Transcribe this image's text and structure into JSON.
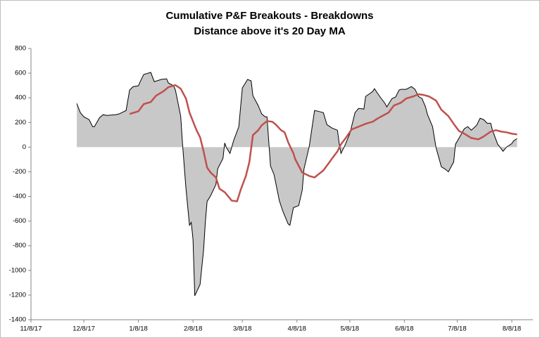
{
  "chart_data": {
    "type": "line",
    "title": "Cumulative P&F Breakouts - Breakdowns",
    "subtitle": "Distance above it's 20 Day MA",
    "xlim": [
      "2017-11-08",
      "2018-08-20"
    ],
    "xticks": [
      {
        "value": "2017-11-08",
        "label": "11/8/17"
      },
      {
        "value": "2017-12-08",
        "label": "12/8/17"
      },
      {
        "value": "2018-01-08",
        "label": "1/8/18"
      },
      {
        "value": "2018-02-08",
        "label": "2/8/18"
      },
      {
        "value": "2018-03-08",
        "label": "3/8/18"
      },
      {
        "value": "2018-04-08",
        "label": "4/8/18"
      },
      {
        "value": "2018-05-08",
        "label": "5/8/18"
      },
      {
        "value": "2018-06-08",
        "label": "6/8/18"
      },
      {
        "value": "2018-07-08",
        "label": "7/8/18"
      },
      {
        "value": "2018-08-08",
        "label": "8/8/18"
      }
    ],
    "ylim": [
      -1400,
      800
    ],
    "yticks": [
      -1400,
      -1200,
      -1000,
      -800,
      -600,
      -400,
      -200,
      0,
      200,
      400,
      600,
      800
    ],
    "series": [
      {
        "type": "area",
        "color": "#000000",
        "fill": "#c8c8c8",
        "x": [
          "2017-12-04",
          "2017-12-06",
          "2017-12-08",
          "2017-12-11",
          "2017-12-13",
          "2017-12-14",
          "2017-12-17",
          "2017-12-19",
          "2017-12-21",
          "2017-12-26",
          "2017-12-28",
          "2018-01-01",
          "2018-01-03",
          "2018-01-05",
          "2018-01-08",
          "2018-01-09",
          "2018-01-11",
          "2018-01-15",
          "2018-01-17",
          "2018-01-21",
          "2018-01-24",
          "2018-01-25",
          "2018-01-28",
          "2018-01-29",
          "2018-02-01",
          "2018-02-02",
          "2018-02-04",
          "2018-02-06",
          "2018-02-07",
          "2018-02-08",
          "2018-02-09",
          "2018-02-12",
          "2018-02-14",
          "2018-02-15",
          "2018-02-16",
          "2018-02-18",
          "2018-02-21",
          "2018-02-22",
          "2018-02-25",
          "2018-02-26",
          "2018-02-27",
          "2018-03-01",
          "2018-03-03",
          "2018-03-06",
          "2018-03-08",
          "2018-03-11",
          "2018-03-13",
          "2018-03-14",
          "2018-03-17",
          "2018-03-19",
          "2018-03-21",
          "2018-03-22",
          "2018-03-24",
          "2018-03-26",
          "2018-03-29",
          "2018-03-31",
          "2018-04-03",
          "2018-04-04",
          "2018-04-06",
          "2018-04-09",
          "2018-04-11",
          "2018-04-12",
          "2018-04-15",
          "2018-04-18",
          "2018-04-20",
          "2018-04-23",
          "2018-04-25",
          "2018-04-28",
          "2018-05-01",
          "2018-05-02",
          "2018-05-03",
          "2018-05-05",
          "2018-05-08",
          "2018-05-11",
          "2018-05-13",
          "2018-05-16",
          "2018-05-17",
          "2018-05-21",
          "2018-05-22",
          "2018-05-25",
          "2018-05-28",
          "2018-05-29",
          "2018-06-01",
          "2018-06-03",
          "2018-06-05",
          "2018-06-06",
          "2018-06-09",
          "2018-06-12",
          "2018-06-14",
          "2018-06-16",
          "2018-06-18",
          "2018-06-20",
          "2018-06-21",
          "2018-06-24",
          "2018-06-26",
          "2018-06-29",
          "2018-07-01",
          "2018-07-03",
          "2018-07-06",
          "2018-07-07",
          "2018-07-10",
          "2018-07-12",
          "2018-07-14",
          "2018-07-16",
          "2018-07-19",
          "2018-07-21",
          "2018-07-23",
          "2018-07-25",
          "2018-07-27",
          "2018-07-28",
          "2018-07-31",
          "2018-08-01",
          "2018-08-03",
          "2018-08-05",
          "2018-08-08",
          "2018-08-09",
          "2018-08-11"
        ],
        "values": [
          354,
          280,
          246,
          223,
          166,
          166,
          240,
          263,
          257,
          263,
          269,
          297,
          463,
          491,
          497,
          531,
          589,
          606,
          531,
          549,
          554,
          520,
          497,
          463,
          251,
          34,
          -337,
          -634,
          -611,
          -749,
          -1206,
          -1114,
          -834,
          -606,
          -440,
          -394,
          -303,
          -177,
          -91,
          34,
          -6,
          -51,
          51,
          166,
          480,
          549,
          537,
          417,
          337,
          269,
          246,
          246,
          -154,
          -223,
          -434,
          -520,
          -623,
          -634,
          -491,
          -474,
          -349,
          -177,
          6,
          297,
          291,
          280,
          183,
          154,
          137,
          29,
          -51,
          6,
          109,
          280,
          314,
          309,
          411,
          451,
          474,
          411,
          354,
          326,
          394,
          406,
          463,
          469,
          469,
          491,
          469,
          411,
          394,
          326,
          269,
          166,
          -6,
          -160,
          -177,
          -200,
          -120,
          23,
          97,
          149,
          166,
          137,
          177,
          234,
          223,
          194,
          194,
          137,
          23,
          6,
          -34,
          0,
          29,
          51,
          69
        ]
      },
      {
        "type": "line",
        "color": "#c0504d",
        "x": [
          "2018-01-03",
          "2018-01-08",
          "2018-01-11",
          "2018-01-15",
          "2018-01-18",
          "2018-01-22",
          "2018-01-25",
          "2018-01-29",
          "2018-02-01",
          "2018-02-04",
          "2018-02-06",
          "2018-02-10",
          "2018-02-12",
          "2018-02-14",
          "2018-02-16",
          "2018-02-18",
          "2018-02-21",
          "2018-02-23",
          "2018-02-26",
          "2018-03-02",
          "2018-03-05",
          "2018-03-07",
          "2018-03-10",
          "2018-03-12",
          "2018-03-14",
          "2018-03-17",
          "2018-03-19",
          "2018-03-22",
          "2018-03-25",
          "2018-03-27",
          "2018-03-30",
          "2018-04-01",
          "2018-04-03",
          "2018-04-06",
          "2018-04-07",
          "2018-04-11",
          "2018-04-15",
          "2018-04-18",
          "2018-04-20",
          "2018-04-23",
          "2018-04-26",
          "2018-04-28",
          "2018-05-01",
          "2018-05-03",
          "2018-05-06",
          "2018-05-09",
          "2018-05-13",
          "2018-05-17",
          "2018-05-21",
          "2018-05-24",
          "2018-05-27",
          "2018-05-30",
          "2018-06-02",
          "2018-06-06",
          "2018-06-09",
          "2018-06-13",
          "2018-06-16",
          "2018-06-19",
          "2018-06-22",
          "2018-06-26",
          "2018-06-29",
          "2018-07-03",
          "2018-07-06",
          "2018-07-09",
          "2018-07-12",
          "2018-07-16",
          "2018-07-20",
          "2018-07-23",
          "2018-07-27",
          "2018-07-30",
          "2018-08-02",
          "2018-08-05",
          "2018-08-08",
          "2018-08-11"
        ],
        "values": [
          269,
          291,
          349,
          366,
          417,
          451,
          486,
          503,
          474,
          394,
          280,
          137,
          80,
          -34,
          -166,
          -206,
          -246,
          -337,
          -366,
          -434,
          -440,
          -349,
          -234,
          -120,
          97,
          137,
          177,
          211,
          206,
          183,
          137,
          120,
          40,
          -51,
          -97,
          -206,
          -234,
          -246,
          -223,
          -189,
          -131,
          -91,
          -34,
          23,
          80,
          143,
          166,
          189,
          206,
          234,
          257,
          280,
          337,
          360,
          394,
          411,
          429,
          423,
          411,
          377,
          303,
          251,
          189,
          131,
          109,
          74,
          63,
          86,
          126,
          137,
          126,
          120,
          109,
          103
        ]
      }
    ]
  }
}
